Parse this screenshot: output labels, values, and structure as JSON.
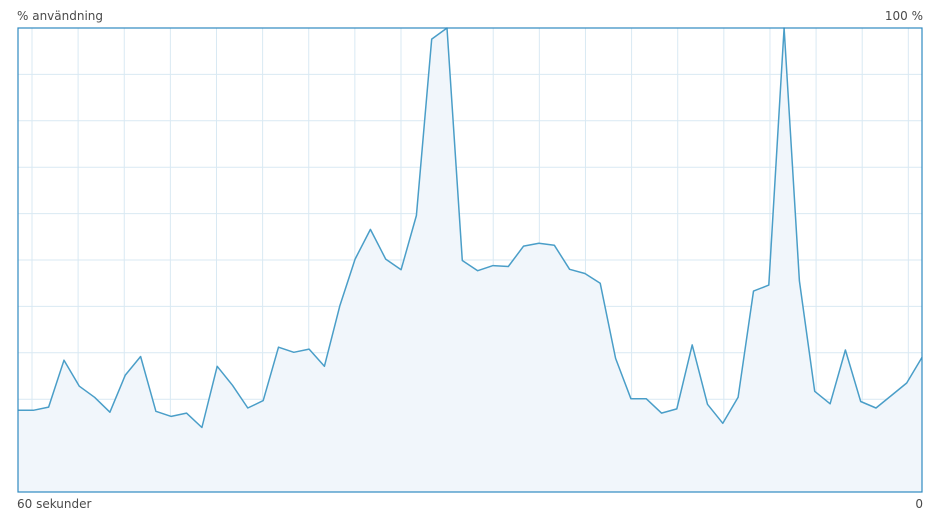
{
  "labels": {
    "top_left": "% användning",
    "top_right": "100 %",
    "bottom_left": "60 sekunder",
    "bottom_right": "0"
  },
  "colors": {
    "line": "#4a9ec8",
    "fill": "#f1f6fb",
    "grid": "#d9e9f3",
    "border": "#2f8ac0"
  },
  "chart_data": {
    "type": "area",
    "xlabel": "60 sekunder",
    "ylabel": "% användning",
    "xlim": [
      60,
      0
    ],
    "ylim": [
      0,
      100
    ],
    "grid": true,
    "series": [
      {
        "values": [
          17.6,
          17.6,
          18.3,
          28.4,
          22.8,
          20.4,
          17.2,
          25.2,
          29.2,
          17.4,
          16.3,
          17.0,
          13.9,
          27.1,
          23.0,
          18.1,
          19.7,
          31.2,
          30.1,
          30.8,
          27.1,
          40.1,
          50.2,
          56.6,
          50.2,
          47.9,
          59.6,
          97.6,
          100.0,
          49.9,
          47.7,
          48.8,
          48.6,
          53.0,
          53.6,
          53.2,
          48.0,
          47.1,
          45.0,
          28.8,
          20.1,
          20.1,
          17.0,
          17.9,
          31.7,
          18.9,
          14.8,
          20.4,
          43.3,
          44.6,
          100.0,
          45.5,
          21.7,
          19.0,
          30.6,
          19.5,
          18.1,
          20.8,
          23.5,
          29.0
        ]
      }
    ]
  }
}
